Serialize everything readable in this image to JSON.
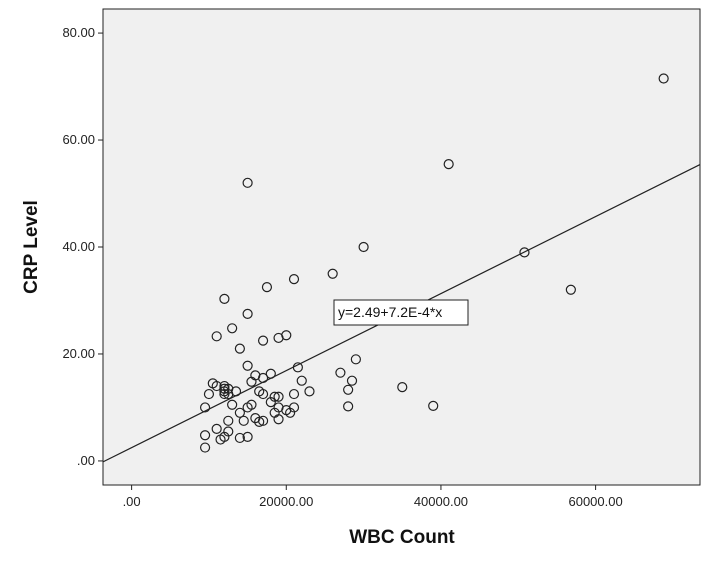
{
  "chart_data": {
    "type": "scatter",
    "title": "",
    "xlabel": "WBC Count",
    "ylabel": "CRP Level",
    "xlim": [
      -3700,
      73500
    ],
    "ylim": [
      -4.5,
      84.5
    ],
    "x_ticks": [
      0,
      20000,
      40000,
      60000
    ],
    "x_tick_labels": [
      ".00",
      "20000.00",
      "40000.00",
      "60000.00"
    ],
    "y_ticks": [
      0,
      20,
      40,
      60,
      80
    ],
    "y_tick_labels": [
      ".00",
      "20.00",
      "40.00",
      "60.00",
      "80.00"
    ],
    "grid": false,
    "plot_background": "#f0f0f0",
    "marker_color": "#222222",
    "fit_line": {
      "intercept": 2.49,
      "slope": 0.00072,
      "label": "y=2.49+7.2E-4*x"
    },
    "points": [
      [
        68800,
        71.5
      ],
      [
        41000,
        55.5
      ],
      [
        15000,
        52
      ],
      [
        30000,
        40
      ],
      [
        50800,
        39
      ],
      [
        56800,
        32
      ],
      [
        26000,
        35
      ],
      [
        21000,
        34
      ],
      [
        17500,
        32.5
      ],
      [
        12000,
        30.3
      ],
      [
        15000,
        27.5
      ],
      [
        13000,
        24.8
      ],
      [
        11000,
        23.3
      ],
      [
        19000,
        23
      ],
      [
        20000,
        23.5
      ],
      [
        17000,
        22.5
      ],
      [
        14000,
        21
      ],
      [
        21500,
        17.5
      ],
      [
        15000,
        17.8
      ],
      [
        18000,
        16.3
      ],
      [
        16000,
        16
      ],
      [
        17000,
        15.5
      ],
      [
        27000,
        16.5
      ],
      [
        29000,
        19
      ],
      [
        22000,
        15
      ],
      [
        28500,
        15
      ],
      [
        15500,
        14.8
      ],
      [
        10500,
        14.5
      ],
      [
        11000,
        14
      ],
      [
        12000,
        14
      ],
      [
        12000,
        13.5
      ],
      [
        12500,
        13.5
      ],
      [
        12000,
        13
      ],
      [
        12000,
        12.5
      ],
      [
        12500,
        12.5
      ],
      [
        10000,
        12.5
      ],
      [
        13500,
        13
      ],
      [
        16500,
        13
      ],
      [
        17000,
        12.5
      ],
      [
        18500,
        12
      ],
      [
        19000,
        12
      ],
      [
        21000,
        12.5
      ],
      [
        23000,
        13
      ],
      [
        28000,
        13.3
      ],
      [
        35000,
        13.8
      ],
      [
        13000,
        10.5
      ],
      [
        15000,
        10
      ],
      [
        15500,
        10.5
      ],
      [
        18000,
        11
      ],
      [
        19000,
        10
      ],
      [
        20000,
        9.5
      ],
      [
        20500,
        9
      ],
      [
        21000,
        10
      ],
      [
        18500,
        9
      ],
      [
        9500,
        10
      ],
      [
        28000,
        10.2
      ],
      [
        39000,
        10.3
      ],
      [
        14000,
        9
      ],
      [
        16000,
        8
      ],
      [
        19000,
        7.8
      ],
      [
        12500,
        7.5
      ],
      [
        14500,
        7.5
      ],
      [
        16500,
        7.3
      ],
      [
        17000,
        7.5
      ],
      [
        11000,
        6
      ],
      [
        12500,
        5.5
      ],
      [
        15000,
        4.5
      ],
      [
        14000,
        4.3
      ],
      [
        9500,
        4.8
      ],
      [
        11500,
        4
      ],
      [
        12000,
        4.5
      ],
      [
        9500,
        2.5
      ]
    ]
  }
}
